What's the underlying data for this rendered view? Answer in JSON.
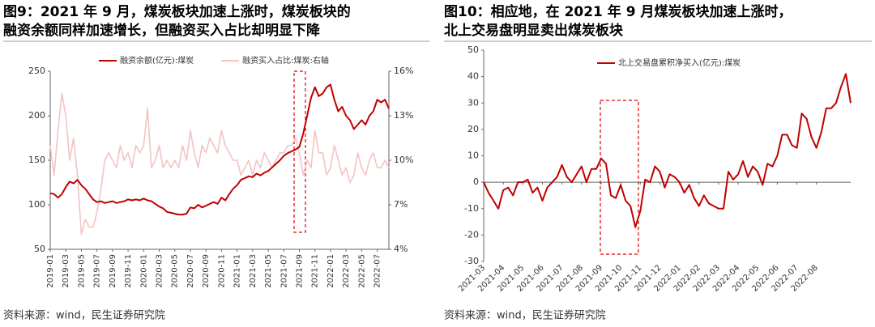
{
  "chart_data": [
    {
      "type": "line",
      "title": [
        "图9：2021 年 9 月，煤炭板块加速上涨时，煤炭板块的",
        "融资余额同样加速增长，但融资买入占比却明显下降"
      ],
      "source": "资料来源：wind，民生证券研究院",
      "categories": [
        "2019-01",
        null,
        null,
        null,
        "2019-03",
        null,
        null,
        null,
        "2019-05",
        null,
        null,
        null,
        "2019-07",
        null,
        null,
        null,
        "2019-09",
        null,
        null,
        null,
        "2019-11",
        null,
        null,
        null,
        "2020-01",
        null,
        null,
        null,
        "2020-03",
        null,
        null,
        null,
        "2020-05",
        null,
        null,
        null,
        "2020-07",
        null,
        null,
        null,
        "2020-09",
        null,
        null,
        null,
        "2020-11",
        null,
        null,
        null,
        "2021-01",
        null,
        null,
        null,
        "2021-03",
        null,
        null,
        null,
        "2021-05",
        null,
        null,
        null,
        "2021-07",
        null,
        null,
        null,
        "2021-09",
        null,
        null,
        null,
        "2021-11",
        null,
        null,
        null,
        "2022-01",
        null,
        null,
        null,
        "2022-03",
        null,
        null,
        null,
        "2022-05",
        null,
        null,
        null,
        "2022-07",
        null,
        null,
        null
      ],
      "series": [
        {
          "name": "融资余额(亿元):煤炭",
          "color": "#c00000",
          "values": [
            113,
            112,
            108,
            112,
            120,
            126,
            124,
            128,
            122,
            118,
            112,
            106,
            103,
            104,
            102,
            103,
            104,
            102,
            103,
            104,
            106,
            105,
            106,
            105,
            107,
            105,
            104,
            101,
            98,
            96,
            92,
            91,
            90,
            89,
            89,
            90,
            97,
            96,
            100,
            97,
            99,
            101,
            103,
            101,
            108,
            105,
            112,
            118,
            122,
            128,
            130,
            132,
            131,
            135,
            133,
            136,
            138,
            142,
            146,
            150,
            155,
            158,
            160,
            162,
            165,
            180,
            200,
            220,
            232,
            222,
            225,
            232,
            235,
            218,
            205,
            210,
            200,
            195,
            185,
            190,
            195,
            190,
            200,
            205,
            218,
            215,
            218,
            208
          ]
        },
        {
          "name": "融资买入占比:煤炭:右轴",
          "color": "#f2c4c4",
          "axis": "y2",
          "values": [
            11,
            9,
            12,
            14.5,
            13,
            10,
            11.5,
            9,
            5,
            6,
            5.5,
            5.5,
            6.5,
            8,
            10,
            10.5,
            10,
            9.5,
            11,
            10,
            10.5,
            9.5,
            11,
            10.5,
            11,
            13.5,
            9.5,
            10,
            11,
            9.5,
            10,
            9.5,
            10,
            9.5,
            11,
            10,
            12,
            10.5,
            9.5,
            11,
            10.5,
            11.5,
            11,
            10.5,
            12,
            11,
            10.5,
            10,
            10,
            9,
            9.5,
            10,
            9,
            10,
            9.5,
            10.5,
            10,
            9.5,
            10,
            10.5,
            10.5,
            11,
            11,
            11.5,
            10.5,
            9,
            10,
            9.5,
            12,
            10.5,
            10.5,
            9,
            9.5,
            11,
            10,
            9,
            9.5,
            8.5,
            9,
            10.5,
            9.5,
            9,
            10,
            10.5,
            9.5,
            9.5,
            10,
            9.5
          ]
        }
      ],
      "ylim": [
        50,
        250
      ],
      "yticks": [
        50,
        100,
        150,
        200,
        250
      ],
      "y2lim": [
        4,
        16
      ],
      "y2ticks": [
        {
          "value": 4,
          "label": "4%"
        },
        {
          "value": 7,
          "label": "7%"
        },
        {
          "value": 10,
          "label": "10%"
        },
        {
          "value": 13,
          "label": "13%"
        },
        {
          "value": 16,
          "label": "16%"
        }
      ],
      "legend": "top"
    },
    {
      "type": "line",
      "title": [
        "图10：相应地，在 2021 年 9 月煤炭板块加速上涨时，",
        "北上交易盘明显卖出煤炭板块"
      ],
      "source": "资料来源：wind，民生证券研究院",
      "categories": [
        "2021-03",
        null,
        null,
        null,
        "2021-04",
        null,
        null,
        null,
        "2021-05",
        null,
        null,
        null,
        "2021-06",
        null,
        null,
        null,
        "2021-07",
        null,
        null,
        null,
        "2021-08",
        null,
        null,
        null,
        "2021-09",
        null,
        null,
        null,
        "2021-10",
        null,
        null,
        null,
        "2021-11",
        null,
        null,
        null,
        "2021-12",
        null,
        null,
        null,
        "2022-01",
        null,
        null,
        null,
        "2022-02",
        null,
        null,
        null,
        "2022-03",
        null,
        null,
        null,
        "2022-04",
        null,
        null,
        null,
        "2022-05",
        null,
        null,
        null,
        "2022-06",
        null,
        null,
        null,
        "2022-07",
        null,
        null,
        null,
        "2022-08",
        null,
        null,
        null,
        null,
        null,
        null,
        null
      ],
      "series": [
        {
          "name": "北上交易盘累积净买入(亿元):煤炭",
          "color": "#c00000",
          "values": [
            0,
            -4,
            -7,
            -10,
            -3,
            -2,
            -5,
            0,
            0,
            1,
            -4,
            -2,
            -7,
            -2,
            0,
            2,
            6.5,
            2,
            0,
            3,
            6,
            0,
            5,
            5,
            9,
            7,
            -5,
            -6,
            -1,
            -7,
            -9,
            -17,
            -11,
            1,
            0,
            6,
            4,
            -2,
            3,
            2,
            0,
            -4,
            -1,
            -6,
            -9,
            -5,
            -8,
            -9,
            -10,
            -10,
            4,
            1,
            3,
            8,
            2,
            6,
            4,
            -1,
            7,
            6,
            10,
            18,
            18,
            14,
            13,
            26,
            24,
            17,
            13,
            19,
            28,
            28,
            30,
            36,
            41,
            30
          ]
        }
      ],
      "ylim": [
        -30,
        50
      ],
      "yticks": [
        -30,
        -20,
        -10,
        0,
        10,
        20,
        30,
        40,
        50
      ],
      "legend": "upper left"
    }
  ]
}
